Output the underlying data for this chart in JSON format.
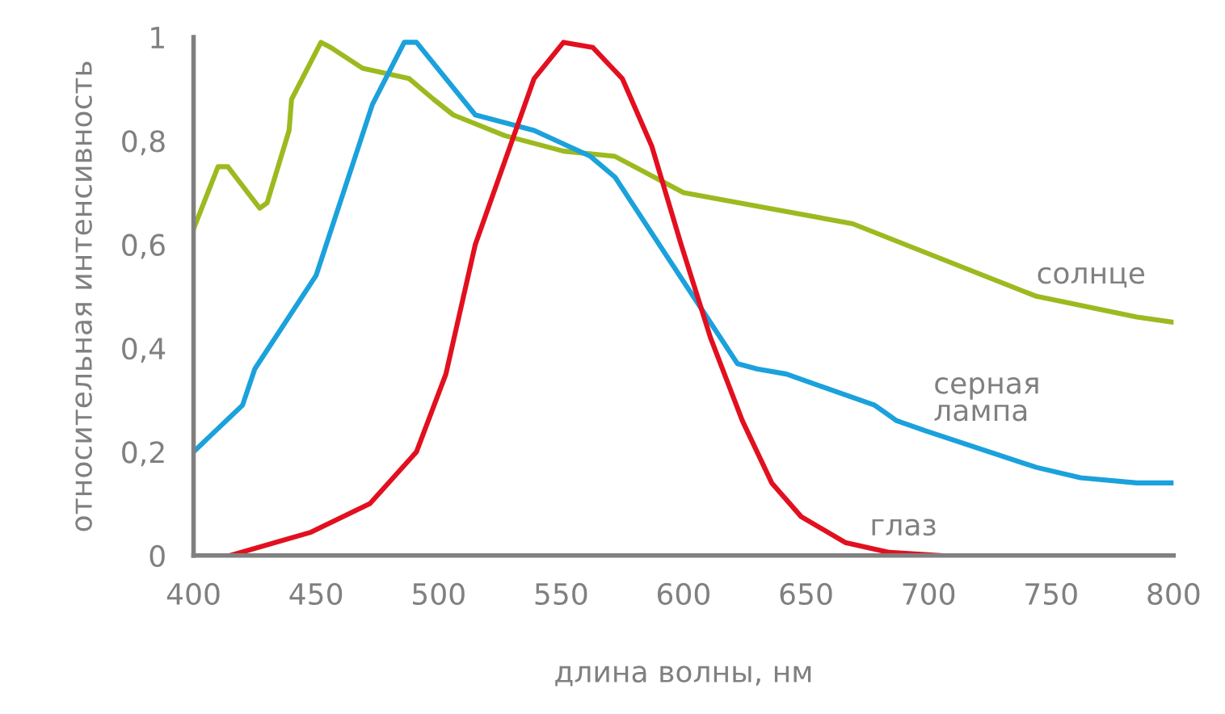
{
  "chart_data": {
    "type": "line",
    "xlabel": "длина волны, нм",
    "ylabel": "относительная интенсивность",
    "xlim": [
      400,
      800
    ],
    "xticks": [
      400,
      450,
      500,
      550,
      600,
      650,
      700,
      750,
      800
    ],
    "ylim": [
      0,
      1
    ],
    "yticks": [
      {
        "value": 0,
        "label": "0"
      },
      {
        "value": 0.2,
        "label": "0,2"
      },
      {
        "value": 0.4,
        "label": "0,4"
      },
      {
        "value": 0.6,
        "label": "0,6"
      },
      {
        "value": 0.8,
        "label": "0,8"
      },
      {
        "value": 1,
        "label": "1"
      }
    ],
    "grid": false,
    "legend": false,
    "marker": "none",
    "line_style": "solid",
    "series": [
      {
        "name": "солнце",
        "color": "#9cba1f",
        "x": [
          400,
          410,
          414,
          427,
          430,
          439,
          440,
          452,
          456,
          469,
          488,
          498,
          506,
          527,
          551,
          572,
          600,
          669,
          744,
          785,
          800
        ],
        "values": [
          0.63,
          0.75,
          0.75,
          0.67,
          0.68,
          0.82,
          0.88,
          0.99,
          0.98,
          0.94,
          0.92,
          0.88,
          0.85,
          0.81,
          0.78,
          0.77,
          0.7,
          0.64,
          0.5,
          0.46,
          0.45
        ]
      },
      {
        "name": "серная\nлампа",
        "color": "#1ba1dc",
        "x": [
          400,
          420,
          425,
          450,
          473,
          486,
          491,
          515,
          539,
          562,
          572,
          622,
          630,
          642,
          678,
          687,
          699,
          744,
          762,
          785,
          800
        ],
        "values": [
          0.2,
          0.29,
          0.36,
          0.54,
          0.87,
          0.99,
          0.99,
          0.85,
          0.82,
          0.77,
          0.73,
          0.37,
          0.36,
          0.35,
          0.29,
          0.26,
          0.24,
          0.17,
          0.15,
          0.14,
          0.14
        ]
      },
      {
        "name": "глаз",
        "color": "#e2101f",
        "x": [
          415,
          448,
          472,
          491,
          503,
          515,
          527,
          539,
          551,
          563,
          575,
          587,
          599,
          611,
          624,
          636,
          648,
          666,
          684,
          705
        ],
        "values": [
          0,
          0.045,
          0.1,
          0.2,
          0.35,
          0.6,
          0.76,
          0.92,
          0.99,
          0.98,
          0.92,
          0.79,
          0.6,
          0.42,
          0.26,
          0.14,
          0.075,
          0.025,
          0.006,
          0
        ]
      }
    ]
  }
}
